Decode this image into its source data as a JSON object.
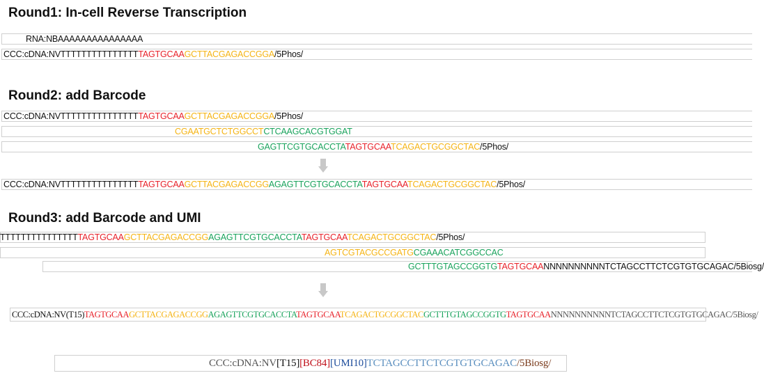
{
  "colors": {
    "black": "#111111",
    "red": "#e8222a",
    "orange": "#f5b415",
    "green": "#1aa35c",
    "darkred": "#c0111b",
    "blue": "#1f4e9c",
    "brown": "#7a3b1c",
    "gray": "#555555",
    "lightblue": "#5b8fbf"
  },
  "round1": {
    "title": "Round1: In-cell Reverse Transcription",
    "line1": [
      {
        "t": "RNA:NBAAAAAAAAAAAAAAA",
        "c": "black"
      }
    ],
    "line2": [
      {
        "t": "CCC:cDNA:NVTTTTTTTTTTTTTTT",
        "c": "black"
      },
      {
        "t": "TAGTGCAA",
        "c": "red"
      },
      {
        "t": "GCTTACGAGACCGGA",
        "c": "orange"
      },
      {
        "t": "/5Phos/",
        "c": "black"
      }
    ]
  },
  "round2": {
    "title": "Round2: add Barcode",
    "line1": [
      {
        "t": "CCC:cDNA:NVTTTTTTTTTTTTTTT",
        "c": "black"
      },
      {
        "t": "TAGTGCAA",
        "c": "red"
      },
      {
        "t": "GCTTACGAGACCGGA",
        "c": "orange"
      },
      {
        "t": "/5Phos/",
        "c": "black"
      }
    ],
    "line2": [
      {
        "t": "CGAATGCTCTGGCCT",
        "c": "orange"
      },
      {
        "t": "CTCAAGCACGTGGAT",
        "c": "green"
      }
    ],
    "line3": [
      {
        "t": "GAGTTCGTGCACCTA",
        "c": "green"
      },
      {
        "t": "TAGTGCAA",
        "c": "red"
      },
      {
        "t": "TCAGACTGCGGCTAC",
        "c": "orange"
      },
      {
        "t": "/5Phos/",
        "c": "black"
      }
    ],
    "line4": [
      {
        "t": "CCC:cDNA:NVTTTTTTTTTTTTTTT",
        "c": "black"
      },
      {
        "t": "TAGTGCAA",
        "c": "red"
      },
      {
        "t": "GCTTACGAGACCGG",
        "c": "orange"
      },
      {
        "t": "AGAGTTCGTGCACCTA",
        "c": "green"
      },
      {
        "t": "TAGTGCAA",
        "c": "red"
      },
      {
        "t": "TCAGACTGCGGCTAC",
        "c": "orange"
      },
      {
        "t": "/5Phos/",
        "c": "black"
      }
    ]
  },
  "round3": {
    "title": "Round3: add Barcode and UMI",
    "line1": [
      {
        "t": "TTTTTTTTTTTTTTT",
        "c": "black"
      },
      {
        "t": "TAGTGCAA",
        "c": "red"
      },
      {
        "t": "GCTTACGAGACCGG",
        "c": "orange"
      },
      {
        "t": "AGAGTTCGTGCACCTA",
        "c": "green"
      },
      {
        "t": "TAGTGCAA",
        "c": "red"
      },
      {
        "t": "TCAGACTGCGGCTAC",
        "c": "orange"
      },
      {
        "t": "/5Phos/",
        "c": "black"
      }
    ],
    "line2": [
      {
        "t": "AGTCGTACGCCGATG",
        "c": "orange"
      },
      {
        "t": "CGAAACATCGGCCAC",
        "c": "green"
      }
    ],
    "line3": [
      {
        "t": "GCTTTGTAGCCGGTG",
        "c": "green"
      },
      {
        "t": "TAGTGCAA",
        "c": "red"
      },
      {
        "t": "NNNNNNNNNNTCTAGCCTTCTCGTGTGCAGAC/5Biosg/",
        "c": "black"
      }
    ],
    "line4": [
      {
        "t": "CCC:cDNA:NV(T15)",
        "c": "black"
      },
      {
        "t": "TAGTGCAA",
        "c": "red"
      },
      {
        "t": "GCTTACGAGACCGG",
        "c": "orange"
      },
      {
        "t": "AGAGTTCGTGCACCTA",
        "c": "green"
      },
      {
        "t": "TAGTGCAA",
        "c": "red"
      },
      {
        "t": "TCAGACTGCGGCTAC",
        "c": "orange"
      },
      {
        "t": "GCTTTGTAGCCGGTG",
        "c": "green"
      },
      {
        "t": "TAGTGCAA",
        "c": "red"
      },
      {
        "t": "NNNNNNNNNNTCTAGCCTTCTCGTGTGCAGAC/5Biosg/",
        "c": "gray"
      }
    ],
    "summary": [
      {
        "t": "CCC:cDNA:NV",
        "c": "gray"
      },
      {
        "t": "[T15]",
        "c": "black"
      },
      {
        "t": "[BC84]",
        "c": "darkred"
      },
      {
        "t": "[UMI10]",
        "c": "blue"
      },
      {
        "t": "TCTAGCCTTCTCGTGTGCAGAC",
        "c": "lightblue"
      },
      {
        "t": "/5Biosg/",
        "c": "brown"
      }
    ]
  }
}
